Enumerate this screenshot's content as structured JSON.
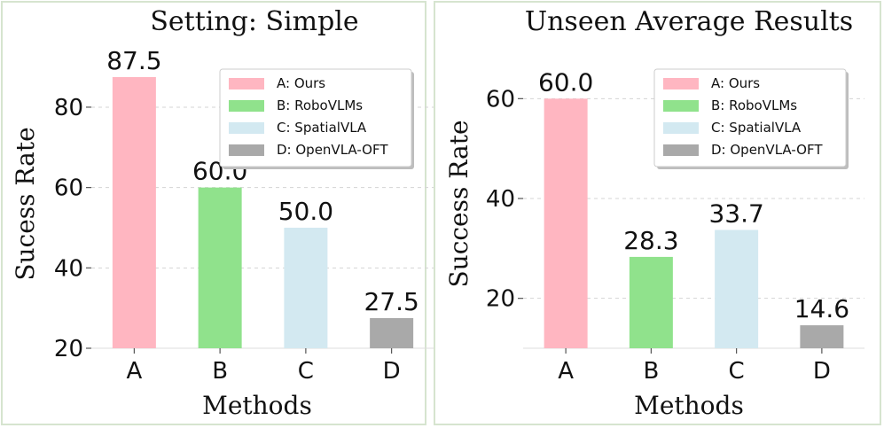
{
  "chart_data": [
    {
      "type": "bar",
      "title": "Setting: Simple",
      "xlabel": "Methods",
      "ylabel": "Sucess Rate",
      "categories": [
        "A",
        "B",
        "C",
        "D"
      ],
      "values": [
        87.5,
        60.0,
        50.0,
        27.5
      ],
      "value_labels": [
        "87.5",
        "60.0",
        "50.0",
        "27.5"
      ],
      "bar_colors": [
        "#ffb6c1",
        "#90e28c",
        "#d3e9f1",
        "#a9a9a9"
      ],
      "ylim": [
        20,
        93
      ],
      "yticks": [
        20,
        40,
        60,
        80
      ],
      "grid": "horizontal-dashed",
      "legend": {
        "placement": "top-right",
        "entries": [
          "A: Ours",
          "B: RoboVLMs",
          "C: SpatialVLA",
          "D: OpenVLA-OFT"
        ]
      },
      "panel_border_color": "#d6e4cf"
    },
    {
      "type": "bar",
      "title": "Unseen Average Results",
      "xlabel": "Methods",
      "ylabel": "Success Rate",
      "categories": [
        "A",
        "B",
        "C",
        "D"
      ],
      "values": [
        60.0,
        28.3,
        33.7,
        14.6
      ],
      "value_labels": [
        "60.0",
        "28.3",
        "33.7",
        "14.6"
      ],
      "bar_colors": [
        "#ffb6c1",
        "#90e28c",
        "#d3e9f1",
        "#a9a9a9"
      ],
      "ylim": [
        10,
        70
      ],
      "yticks": [
        20,
        40,
        60
      ],
      "grid": "horizontal-dashed",
      "legend": {
        "placement": "top-right",
        "entries": [
          "A: Ours",
          "B: RoboVLMs",
          "C: SpatialVLA",
          "D: OpenVLA-OFT"
        ]
      },
      "panel_border_color": "#d6e4cf"
    }
  ]
}
